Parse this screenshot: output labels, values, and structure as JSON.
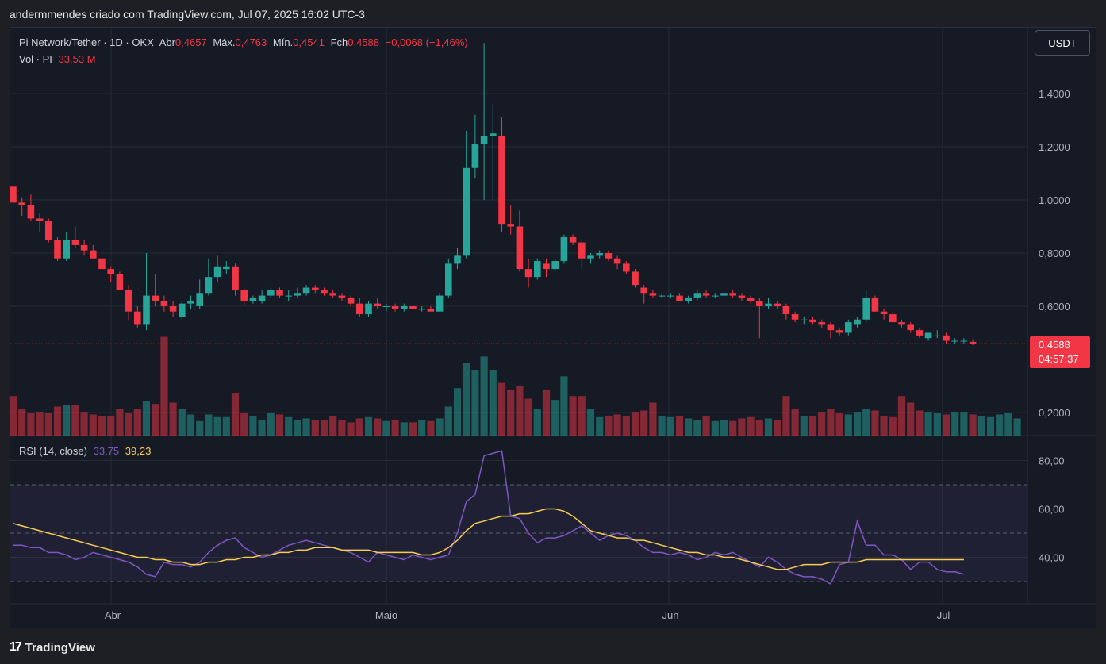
{
  "caption": "andermmendes criado com TradingView.com, Jul 07, 2025 16:02 UTC-3",
  "legend": {
    "symbol": "Pi Network/Tether · 1D · OKX",
    "open_label": "Abr",
    "open_value": "0,4657",
    "high_label": "Máx.",
    "high_value": "0,4763",
    "low_label": "Mín.",
    "low_value": "0,4541",
    "close_label": "Fch",
    "close_value": "0,4588",
    "change": "−0,0068 (−1,46%)",
    "volume_label": "Vol · PI",
    "volume_value": "33,53 M",
    "rsi_label": "RSI (14, close)",
    "rsi_value": "33,75",
    "rsi_ma_value": "39,23"
  },
  "currency_button": "USDT",
  "last_price": {
    "price": "0,4588",
    "countdown": "04:57:37"
  },
  "brand": {
    "logo": "17",
    "name": "TradingView"
  },
  "colors": {
    "up": "#26a69a",
    "down": "#f23645",
    "rsi": "#7e57c2",
    "rsi_ma": "#f7cd52",
    "background": "#161a25",
    "grid": "#262a35"
  },
  "chart_data": [
    {
      "type": "candlestick",
      "title": "Pi Network/Tether · 1D · OKX",
      "y_axis_ticks": [
        "1,4000",
        "1,2000",
        "1,0000",
        "0,8000",
        "0,6000",
        "0,2000"
      ],
      "ylim": [
        0.06,
        1.6
      ],
      "x_axis_months": [
        "Abr",
        "Maio",
        "Jun",
        "Jul"
      ],
      "candles": [
        [
          1.05,
          1.1,
          0.85,
          0.99
        ],
        [
          0.99,
          1.01,
          0.94,
          0.98
        ],
        [
          0.98,
          1.02,
          0.92,
          0.93
        ],
        [
          0.93,
          0.95,
          0.88,
          0.92
        ],
        [
          0.92,
          0.93,
          0.84,
          0.85
        ],
        [
          0.85,
          0.86,
          0.77,
          0.78
        ],
        [
          0.78,
          0.88,
          0.77,
          0.85
        ],
        [
          0.85,
          0.9,
          0.82,
          0.83
        ],
        [
          0.83,
          0.85,
          0.79,
          0.81
        ],
        [
          0.81,
          0.83,
          0.78,
          0.78
        ],
        [
          0.78,
          0.8,
          0.71,
          0.74
        ],
        [
          0.74,
          0.75,
          0.69,
          0.72
        ],
        [
          0.72,
          0.73,
          0.66,
          0.66
        ],
        [
          0.66,
          0.68,
          0.55,
          0.58
        ],
        [
          0.58,
          0.6,
          0.52,
          0.53
        ],
        [
          0.53,
          0.8,
          0.51,
          0.64
        ],
        [
          0.64,
          0.72,
          0.6,
          0.62
        ],
        [
          0.62,
          0.64,
          0.58,
          0.6
        ],
        [
          0.6,
          0.62,
          0.56,
          0.58
        ],
        [
          0.56,
          0.62,
          0.55,
          0.61
        ],
        [
          0.61,
          0.64,
          0.59,
          0.62
        ],
        [
          0.6,
          0.7,
          0.59,
          0.65
        ],
        [
          0.65,
          0.78,
          0.64,
          0.71
        ],
        [
          0.71,
          0.79,
          0.69,
          0.75
        ],
        [
          0.74,
          0.77,
          0.72,
          0.75
        ],
        [
          0.75,
          0.76,
          0.64,
          0.66
        ],
        [
          0.66,
          0.67,
          0.6,
          0.62
        ],
        [
          0.62,
          0.64,
          0.61,
          0.63
        ],
        [
          0.62,
          0.66,
          0.61,
          0.64
        ],
        [
          0.64,
          0.67,
          0.63,
          0.66
        ],
        [
          0.66,
          0.67,
          0.63,
          0.64
        ],
        [
          0.64,
          0.66,
          0.62,
          0.64
        ],
        [
          0.64,
          0.67,
          0.63,
          0.65
        ],
        [
          0.65,
          0.68,
          0.64,
          0.67
        ],
        [
          0.67,
          0.68,
          0.65,
          0.66
        ],
        [
          0.66,
          0.67,
          0.64,
          0.65
        ],
        [
          0.65,
          0.66,
          0.63,
          0.64
        ],
        [
          0.64,
          0.65,
          0.62,
          0.63
        ],
        [
          0.63,
          0.64,
          0.6,
          0.61
        ],
        [
          0.61,
          0.63,
          0.56,
          0.57
        ],
        [
          0.57,
          0.62,
          0.56,
          0.61
        ],
        [
          0.61,
          0.63,
          0.59,
          0.6
        ],
        [
          0.6,
          0.61,
          0.58,
          0.6
        ],
        [
          0.6,
          0.61,
          0.58,
          0.59
        ],
        [
          0.59,
          0.61,
          0.58,
          0.6
        ],
        [
          0.6,
          0.61,
          0.59,
          0.59
        ],
        [
          0.59,
          0.6,
          0.58,
          0.59
        ],
        [
          0.59,
          0.6,
          0.58,
          0.58
        ],
        [
          0.58,
          0.65,
          0.58,
          0.64
        ],
        [
          0.64,
          0.78,
          0.63,
          0.76
        ],
        [
          0.76,
          0.82,
          0.74,
          0.79
        ],
        [
          0.79,
          1.26,
          0.78,
          1.12
        ],
        [
          1.12,
          1.32,
          1.08,
          1.21
        ],
        [
          1.21,
          1.59,
          1.0,
          1.24
        ],
        [
          1.24,
          1.36,
          1.0,
          1.25
        ],
        [
          1.24,
          1.31,
          0.88,
          0.91
        ],
        [
          0.91,
          0.98,
          0.87,
          0.9
        ],
        [
          0.9,
          0.96,
          0.73,
          0.74
        ],
        [
          0.74,
          0.78,
          0.67,
          0.71
        ],
        [
          0.71,
          0.78,
          0.7,
          0.77
        ],
        [
          0.76,
          0.78,
          0.71,
          0.74
        ],
        [
          0.74,
          0.78,
          0.73,
          0.77
        ],
        [
          0.77,
          0.87,
          0.76,
          0.86
        ],
        [
          0.86,
          0.87,
          0.83,
          0.84
        ],
        [
          0.84,
          0.85,
          0.74,
          0.78
        ],
        [
          0.78,
          0.8,
          0.76,
          0.79
        ],
        [
          0.79,
          0.81,
          0.78,
          0.8
        ],
        [
          0.8,
          0.81,
          0.77,
          0.78
        ],
        [
          0.78,
          0.79,
          0.74,
          0.76
        ],
        [
          0.76,
          0.77,
          0.72,
          0.73
        ],
        [
          0.73,
          0.74,
          0.67,
          0.68
        ],
        [
          0.67,
          0.68,
          0.61,
          0.65
        ],
        [
          0.65,
          0.66,
          0.63,
          0.64
        ],
        [
          0.64,
          0.65,
          0.63,
          0.64
        ],
        [
          0.64,
          0.65,
          0.63,
          0.64
        ],
        [
          0.64,
          0.65,
          0.62,
          0.62
        ],
        [
          0.62,
          0.64,
          0.61,
          0.63
        ],
        [
          0.63,
          0.66,
          0.62,
          0.65
        ],
        [
          0.65,
          0.66,
          0.63,
          0.64
        ],
        [
          0.64,
          0.65,
          0.63,
          0.64
        ],
        [
          0.64,
          0.66,
          0.63,
          0.65
        ],
        [
          0.65,
          0.66,
          0.63,
          0.64
        ],
        [
          0.64,
          0.65,
          0.62,
          0.63
        ],
        [
          0.63,
          0.64,
          0.61,
          0.62
        ],
        [
          0.62,
          0.63,
          0.48,
          0.6
        ],
        [
          0.6,
          0.63,
          0.59,
          0.61
        ],
        [
          0.61,
          0.62,
          0.59,
          0.6
        ],
        [
          0.6,
          0.61,
          0.55,
          0.57
        ],
        [
          0.57,
          0.58,
          0.54,
          0.55
        ],
        [
          0.55,
          0.56,
          0.53,
          0.55
        ],
        [
          0.55,
          0.56,
          0.53,
          0.54
        ],
        [
          0.54,
          0.55,
          0.52,
          0.53
        ],
        [
          0.53,
          0.54,
          0.48,
          0.51
        ],
        [
          0.51,
          0.52,
          0.49,
          0.5
        ],
        [
          0.5,
          0.55,
          0.49,
          0.54
        ],
        [
          0.53,
          0.56,
          0.52,
          0.55
        ],
        [
          0.55,
          0.66,
          0.54,
          0.63
        ],
        [
          0.63,
          0.64,
          0.58,
          0.58
        ],
        [
          0.58,
          0.59,
          0.55,
          0.57
        ],
        [
          0.57,
          0.58,
          0.54,
          0.54
        ],
        [
          0.54,
          0.55,
          0.52,
          0.53
        ],
        [
          0.53,
          0.54,
          0.5,
          0.51
        ],
        [
          0.51,
          0.52,
          0.48,
          0.49
        ],
        [
          0.48,
          0.5,
          0.47,
          0.5
        ],
        [
          0.49,
          0.51,
          0.48,
          0.49
        ],
        [
          0.49,
          0.5,
          0.46,
          0.47
        ],
        [
          0.47,
          0.48,
          0.46,
          0.47
        ],
        [
          0.47,
          0.48,
          0.46,
          0.47
        ],
        [
          0.466,
          0.476,
          0.454,
          0.459
        ]
      ]
    },
    {
      "type": "bar",
      "title": "Vol · PI",
      "values": [
        30,
        20,
        17,
        18,
        17,
        22,
        23,
        23,
        18,
        16,
        15,
        15,
        20,
        17,
        20,
        26,
        24,
        75,
        25,
        20,
        16,
        11,
        16,
        14,
        14,
        32,
        17,
        15,
        12,
        17,
        16,
        14,
        12,
        13,
        12,
        12,
        15,
        12,
        10,
        13,
        14,
        13,
        11,
        12,
        10,
        10,
        12,
        11,
        13,
        22,
        36,
        55,
        50,
        60,
        50,
        40,
        35,
        38,
        28,
        20,
        35,
        27,
        45,
        30,
        30,
        20,
        14,
        15,
        16,
        15,
        18,
        19,
        25,
        15,
        14,
        15,
        13,
        12,
        15,
        11,
        12,
        11,
        13,
        14,
        12,
        13,
        12,
        30,
        20,
        15,
        15,
        18,
        20,
        17,
        16,
        18,
        20,
        19,
        15,
        14,
        30,
        25,
        19,
        18,
        17,
        16,
        18,
        18,
        16,
        15,
        14,
        16,
        17,
        13
      ]
    },
    {
      "type": "line",
      "title": "RSI (14, close)",
      "y_axis_ticks": [
        "80,00",
        "60,00",
        "40,00"
      ],
      "ylim": [
        25,
        90
      ],
      "bands": [
        30,
        50,
        70
      ],
      "series": [
        {
          "values": [
            45,
            45,
            44,
            44,
            42,
            42,
            41,
            39,
            40,
            42,
            41,
            40,
            39,
            38,
            36,
            33,
            32,
            38,
            37,
            37,
            36,
            38,
            42,
            45,
            47,
            48,
            44,
            42,
            40,
            41,
            43,
            45,
            46,
            47,
            46,
            45,
            44,
            43,
            42,
            40,
            38,
            42,
            41,
            40,
            39,
            41,
            40,
            39,
            40,
            41,
            50,
            63,
            66,
            82,
            83,
            84,
            57,
            56,
            50,
            46,
            48,
            48,
            49,
            51,
            53,
            50,
            47,
            49,
            50,
            49,
            47,
            44,
            42,
            42,
            41,
            42,
            41,
            39,
            40,
            42,
            41,
            42,
            40,
            38,
            36,
            40,
            38,
            35,
            33,
            32,
            32,
            31,
            29,
            37,
            38,
            55,
            45,
            45,
            41,
            41,
            39,
            35,
            38,
            38,
            35,
            34,
            34,
            33
          ]
        },
        {
          "values": [
            54,
            53,
            52,
            51,
            50,
            49,
            48,
            47,
            46,
            45,
            44,
            43,
            42,
            41,
            40,
            40,
            39,
            39,
            38,
            38,
            37,
            37,
            38,
            38,
            39,
            39,
            40,
            40,
            41,
            41,
            42,
            42,
            43,
            43,
            44,
            44,
            44,
            43,
            43,
            43,
            43,
            42,
            42,
            42,
            42,
            42,
            41,
            41,
            42,
            44,
            47,
            51,
            54,
            55,
            56,
            57,
            57,
            58,
            58,
            59,
            60,
            60,
            59,
            57,
            54,
            51,
            50,
            49,
            48,
            48,
            47,
            47,
            46,
            45,
            44,
            43,
            42,
            42,
            41,
            41,
            40,
            40,
            39,
            38,
            37,
            36,
            35,
            35,
            36,
            37,
            37,
            37,
            38,
            38,
            38,
            38,
            39,
            39,
            39,
            39,
            39,
            39,
            39,
            39,
            39,
            39,
            39,
            39
          ]
        }
      ]
    }
  ]
}
